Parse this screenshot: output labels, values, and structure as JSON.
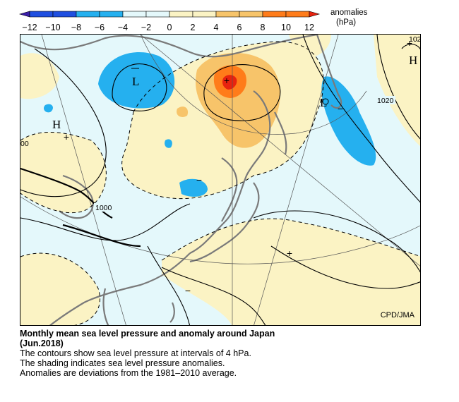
{
  "legend": {
    "title": "anomalies",
    "unit": "(hPa)",
    "ticks": [
      "−12",
      "−10",
      "−8",
      "−6",
      "−4",
      "−2",
      "0",
      "2",
      "4",
      "6",
      "8",
      "10",
      "12"
    ],
    "colors": {
      "neg12_to_neg8": "#1f4fe0",
      "neg8_to_neg4": "#25b0ef",
      "neg4_to_0": "#e4f8fb",
      "0_to_4": "#fbf3c4",
      "4_to_8": "#f7c46a",
      "8_to_12": "#ff7c1a",
      "over_12": "#e8230f"
    }
  },
  "map": {
    "pressure_labels": [
      "1020",
      "1000",
      "00",
      "102"
    ],
    "centers": [
      "L",
      "L",
      "H",
      "H"
    ],
    "anomaly_signs": [
      "+",
      "−",
      "+",
      "−",
      "+",
      "−",
      "+"
    ],
    "credit": "CPD/JMA"
  },
  "caption": {
    "title": "Monthly mean sea level pressure and anomaly around Japan",
    "period": "(Jun.2018)",
    "lines": [
      "The contours show sea level pressure at intervals of 4 hPa.",
      "The shading indicates sea level pressure anomalies.",
      "Anomalies are deviations from the 1981–2010 average."
    ]
  }
}
